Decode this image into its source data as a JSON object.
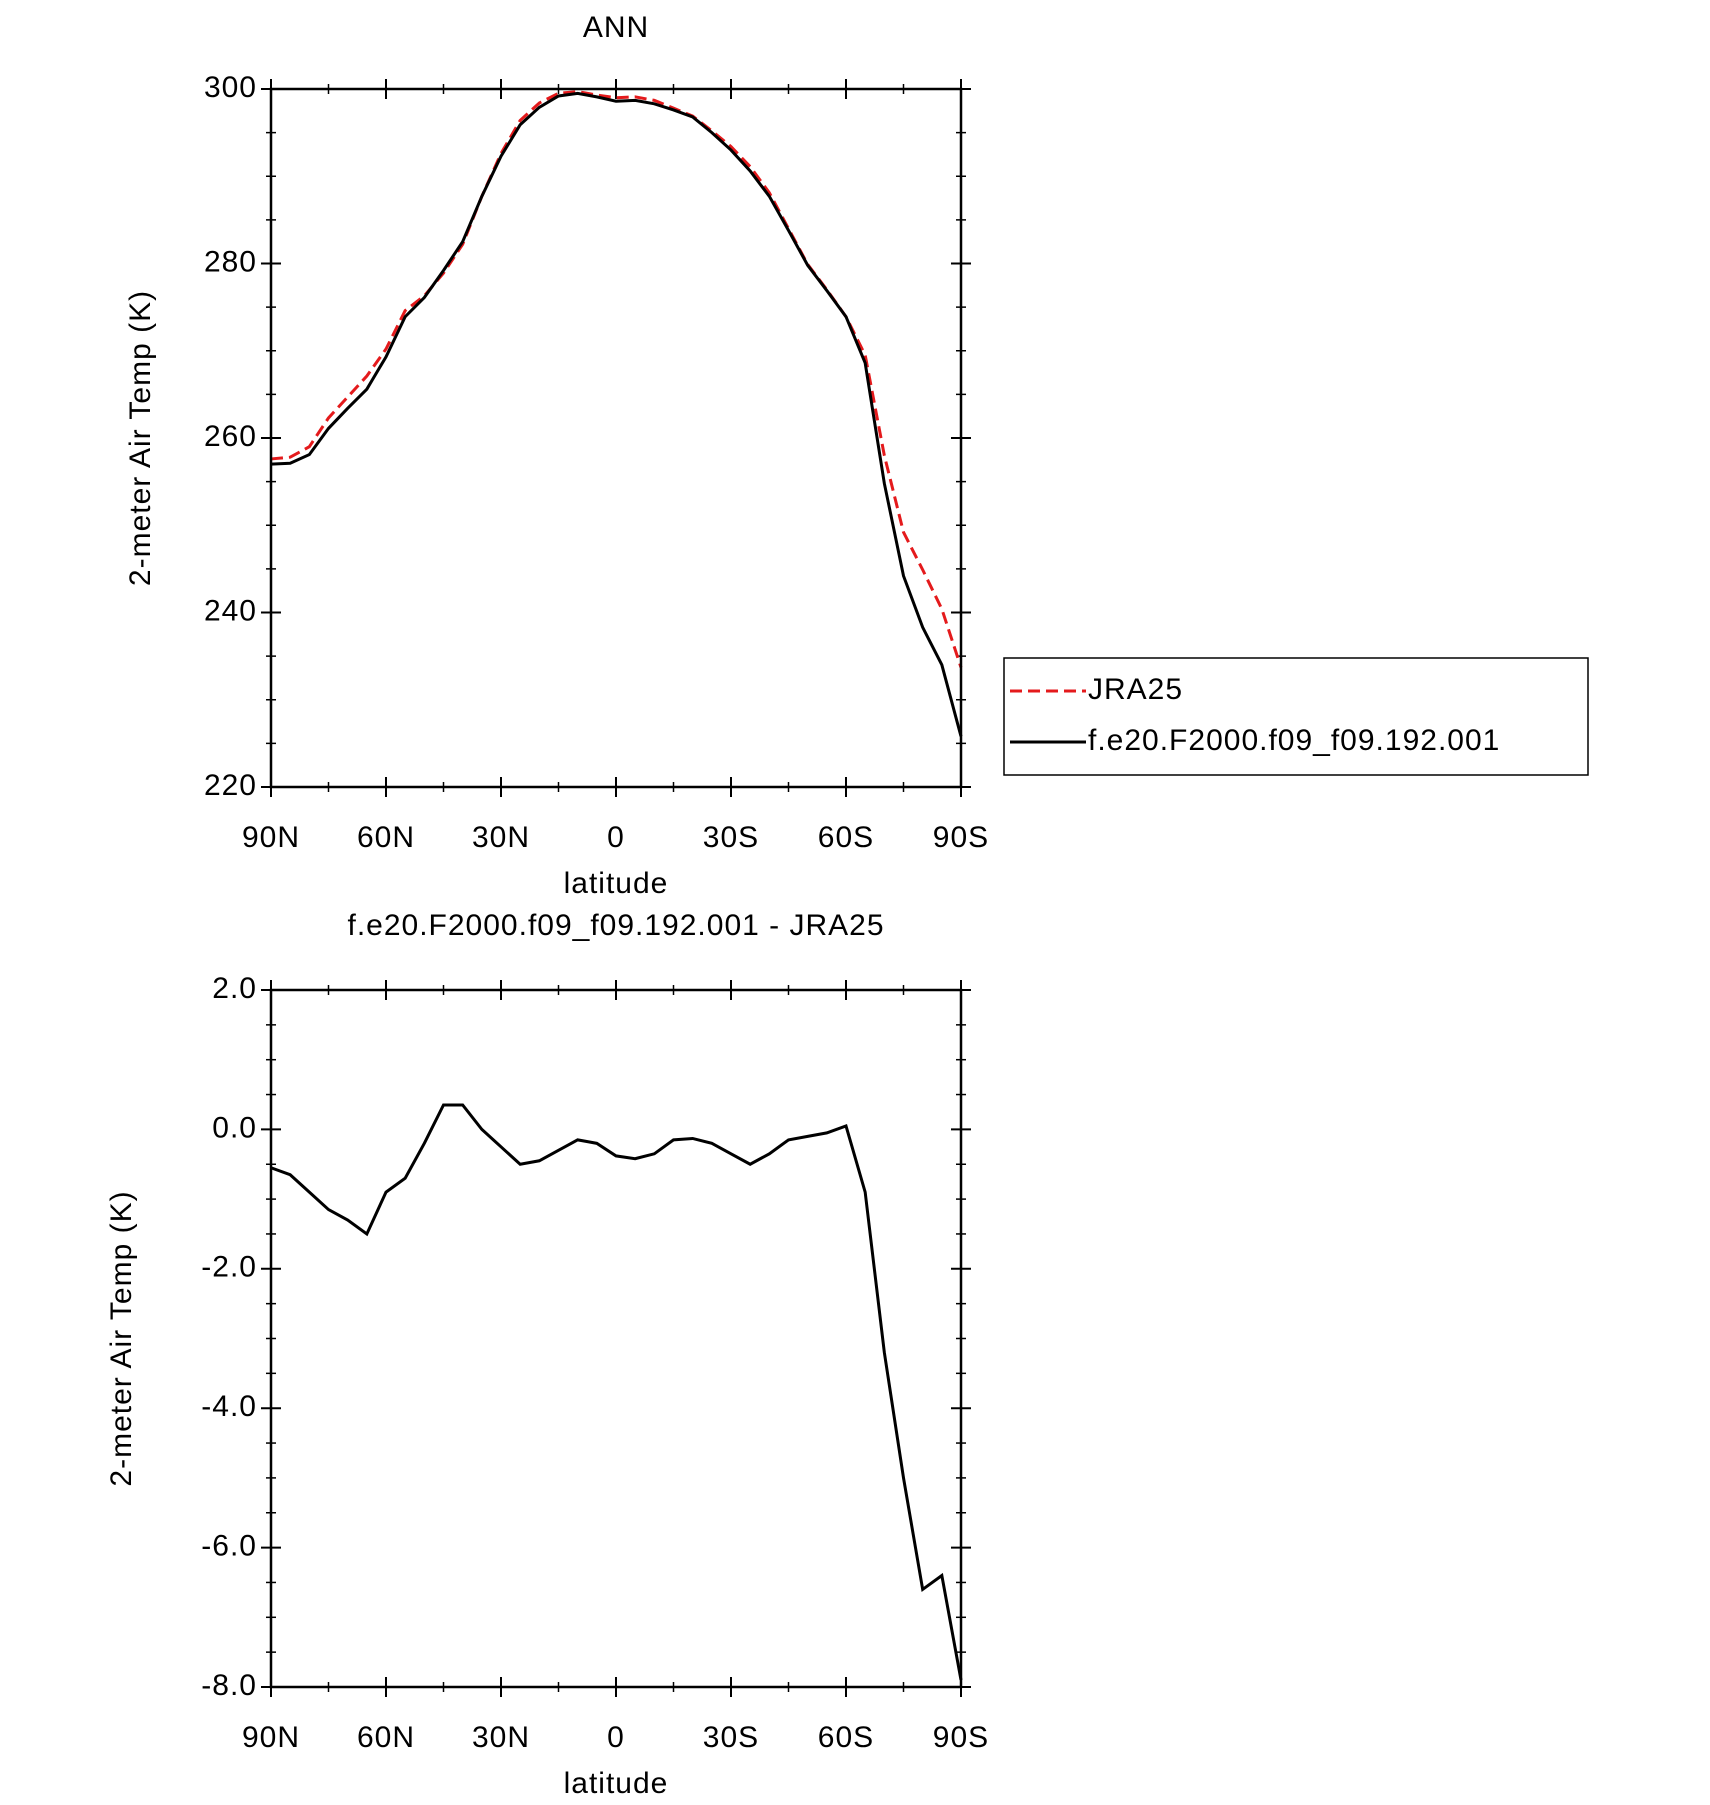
{
  "chart_data": [
    {
      "type": "line",
      "title": "ANN",
      "x": [
        90,
        85,
        80,
        75,
        70,
        65,
        60,
        55,
        50,
        45,
        40,
        35,
        30,
        25,
        20,
        15,
        10,
        5,
        0,
        -5,
        -10,
        -15,
        -20,
        -25,
        -30,
        -35,
        -40,
        -45,
        -50,
        -55,
        -60,
        -65,
        -70,
        -75,
        -80,
        -85,
        -90
      ],
      "series": [
        {
          "name": "JRA25",
          "color": "#e41a1c",
          "linestyle": "dashed",
          "values": [
            257.6,
            257.8,
            259.0,
            262.3,
            264.7,
            267.1,
            270.2,
            274.6,
            276.3,
            278.9,
            282.2,
            287.7,
            292.6,
            296.4,
            298.4,
            299.5,
            299.7,
            299.3,
            299.0,
            299.1,
            298.7,
            297.8,
            296.9,
            295.2,
            293.4,
            291.1,
            288.1,
            284.0,
            279.9,
            277.0,
            273.9,
            269.5,
            258.0,
            249.2,
            244.9,
            240.4,
            233.7
          ]
        },
        {
          "name": "f.e20.F2000.f09_f09.192.001",
          "color": "#000000",
          "linestyle": "solid",
          "values": [
            257.0,
            257.1,
            258.1,
            261.1,
            263.4,
            265.6,
            269.3,
            273.9,
            276.1,
            279.2,
            282.5,
            287.7,
            292.3,
            295.9,
            297.9,
            299.2,
            299.5,
            299.1,
            298.6,
            298.7,
            298.3,
            297.6,
            296.8,
            295.0,
            293.0,
            290.6,
            287.7,
            283.8,
            279.8,
            276.9,
            273.9,
            268.6,
            254.8,
            244.2,
            238.3,
            234.0,
            225.8
          ]
        }
      ],
      "xlabel": "latitude",
      "ylabel": "2-meter Air Temp (K)",
      "xlim": [
        90,
        -90
      ],
      "xticks": [
        {
          "value": 90,
          "label": "90N"
        },
        {
          "value": 60,
          "label": "60N"
        },
        {
          "value": 30,
          "label": "30N"
        },
        0,
        {
          "value": -30,
          "label": "30S"
        },
        {
          "value": -60,
          "label": "60S"
        },
        {
          "value": -90,
          "label": "90S"
        }
      ],
      "ylim": [
        220,
        300
      ],
      "yticks": [
        220,
        240,
        260,
        280,
        300
      ],
      "legend": "outside-right"
    },
    {
      "type": "line",
      "title": "f.e20.F2000.f09_f09.192.001 - JRA25",
      "x": [
        90,
        85,
        80,
        75,
        70,
        65,
        60,
        55,
        50,
        45,
        40,
        35,
        30,
        25,
        20,
        15,
        10,
        5,
        0,
        -5,
        -10,
        -15,
        -20,
        -25,
        -30,
        -35,
        -40,
        -45,
        -50,
        -55,
        -60,
        -65,
        -70,
        -75,
        -80,
        -85,
        -90
      ],
      "series": [
        {
          "color": "#000000",
          "linestyle": "solid",
          "values": [
            -0.55,
            -0.65,
            -0.9,
            -1.15,
            -1.3,
            -1.5,
            -0.9,
            -0.7,
            -0.2,
            0.35,
            0.35,
            0.0,
            -0.25,
            -0.5,
            -0.45,
            -0.3,
            -0.15,
            -0.2,
            -0.38,
            -0.42,
            -0.35,
            -0.15,
            -0.13,
            -0.2,
            -0.35,
            -0.5,
            -0.35,
            -0.15,
            -0.1,
            -0.05,
            0.05,
            -0.9,
            -3.2,
            -5.0,
            -6.6,
            -6.4,
            -7.9
          ]
        }
      ],
      "xlabel": "latitude",
      "ylabel": "2-meter Air Temp (K)",
      "xlim": [
        90,
        -90
      ],
      "xticks": [
        {
          "value": 90,
          "label": "90N"
        },
        {
          "value": 60,
          "label": "60N"
        },
        {
          "value": 30,
          "label": "30N"
        },
        0,
        {
          "value": -30,
          "label": "30S"
        },
        {
          "value": -60,
          "label": "60S"
        },
        {
          "value": -90,
          "label": "90S"
        }
      ],
      "ylim": [
        -8,
        2
      ],
      "yticks": [
        {
          "value": -8,
          "label": "-8.0"
        },
        {
          "value": -6,
          "label": "-6.0"
        },
        {
          "value": -4,
          "label": "-4.0"
        },
        {
          "value": -2,
          "label": "-2.0"
        },
        {
          "value": 0,
          "label": "0.0"
        },
        {
          "value": 2,
          "label": "2.0"
        }
      ]
    }
  ]
}
